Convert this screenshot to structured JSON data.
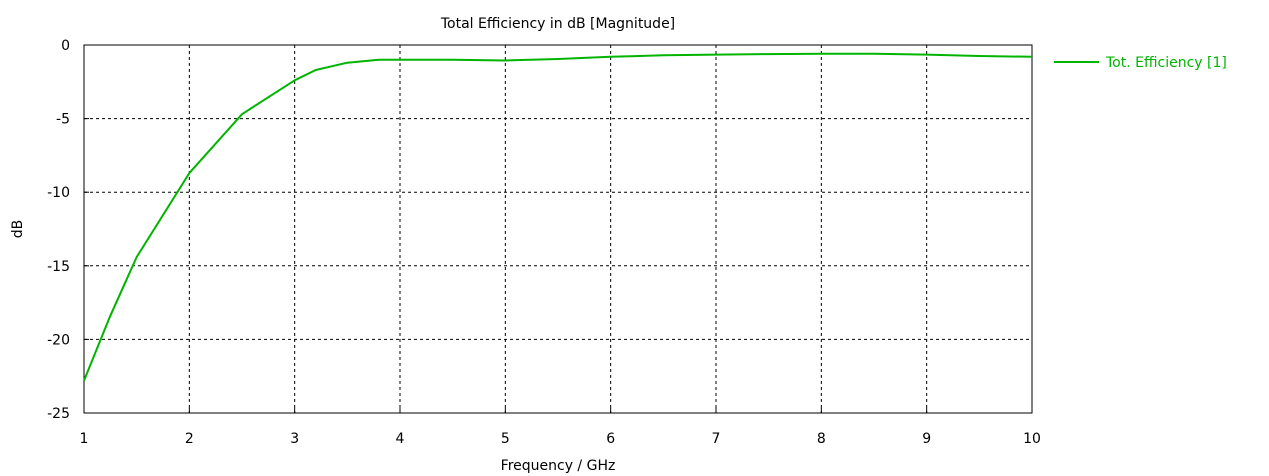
{
  "chart_data": {
    "type": "line",
    "title": "Total Efficiency in dB [Magnitude]",
    "xlabel": "Frequency / GHz",
    "ylabel": "dB",
    "xlim": [
      1,
      10
    ],
    "ylim": [
      -25,
      0
    ],
    "xticks": [
      1,
      2,
      3,
      4,
      5,
      6,
      7,
      8,
      9,
      10
    ],
    "yticks": [
      0,
      -5,
      -10,
      -15,
      -20,
      -25
    ],
    "xtick_labels": [
      "1",
      "2",
      "3",
      "4",
      "5",
      "6",
      "7",
      "8",
      "9",
      "10"
    ],
    "ytick_labels": [
      "0",
      "-5",
      "-10",
      "-15",
      "-20",
      "-25"
    ],
    "grid": true,
    "legend_position": "right",
    "series": [
      {
        "name": "Tot. Efficiency [1]",
        "color": "#00b400",
        "x": [
          1.0,
          1.25,
          1.5,
          2.0,
          2.5,
          3.0,
          3.2,
          3.5,
          3.8,
          4.0,
          4.5,
          5.0,
          5.5,
          6.0,
          6.5,
          7.0,
          7.5,
          8.0,
          8.5,
          9.0,
          9.5,
          10.0
        ],
        "y": [
          -22.8,
          -18.4,
          -14.4,
          -8.7,
          -4.7,
          -2.4,
          -1.7,
          -1.2,
          -1.0,
          -1.0,
          -1.0,
          -1.05,
          -0.95,
          -0.8,
          -0.7,
          -0.65,
          -0.62,
          -0.6,
          -0.6,
          -0.65,
          -0.75,
          -0.8
        ]
      }
    ]
  }
}
